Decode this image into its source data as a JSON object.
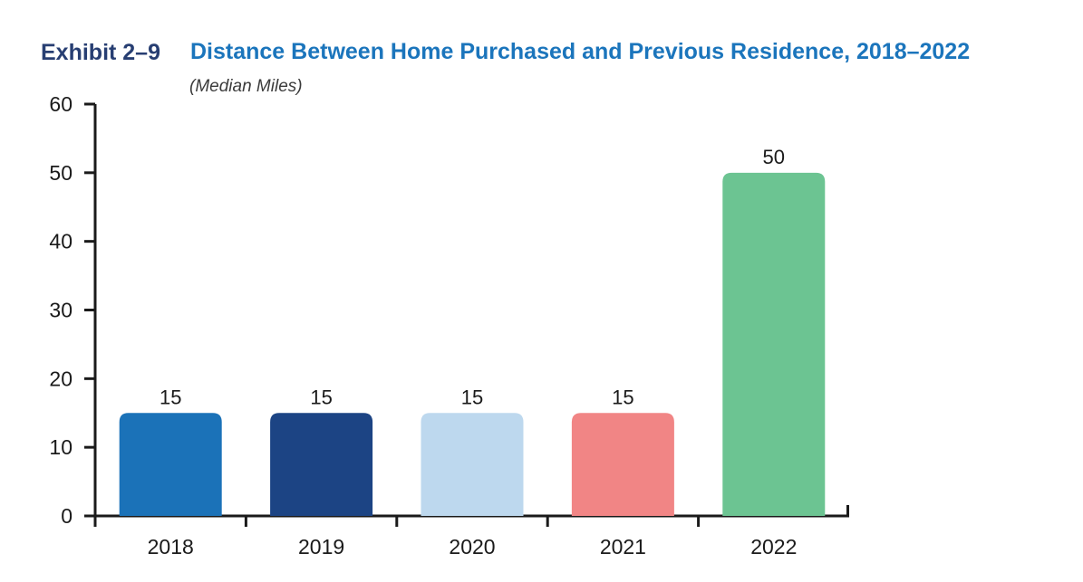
{
  "header": {
    "exhibit_label": "Exhibit 2–9",
    "title": "Distance Between Home Purchased and Previous Residence, 2018–2022",
    "subtitle": "(Median Miles)"
  },
  "colors": {
    "exhibit_label": "#273E72",
    "title": "#1B75BC",
    "subtitle": "#3B3B3B",
    "axis": "#1A1A1A",
    "tick_labels": "#1A1A1A",
    "value_labels": "#1A1A1A",
    "background": "#FFFFFF"
  },
  "chart_data": {
    "type": "bar",
    "title": "Distance Between Home Purchased and Previous Residence, 2018–2022",
    "subtitle": "(Median Miles)",
    "categories": [
      "2018",
      "2019",
      "2020",
      "2021",
      "2022"
    ],
    "values": [
      15,
      15,
      15,
      15,
      50
    ],
    "value_labels": [
      "15",
      "15",
      "15",
      "15",
      "50"
    ],
    "bar_colors": [
      "#1B72B8",
      "#1C4484",
      "#BDD8EE",
      "#F18585",
      "#6CC492"
    ],
    "xlabel": "",
    "ylabel": "",
    "ylim": [
      0,
      60
    ],
    "yticks": [
      0,
      10,
      20,
      30,
      40,
      50,
      60
    ],
    "grid": false,
    "legend": false
  }
}
